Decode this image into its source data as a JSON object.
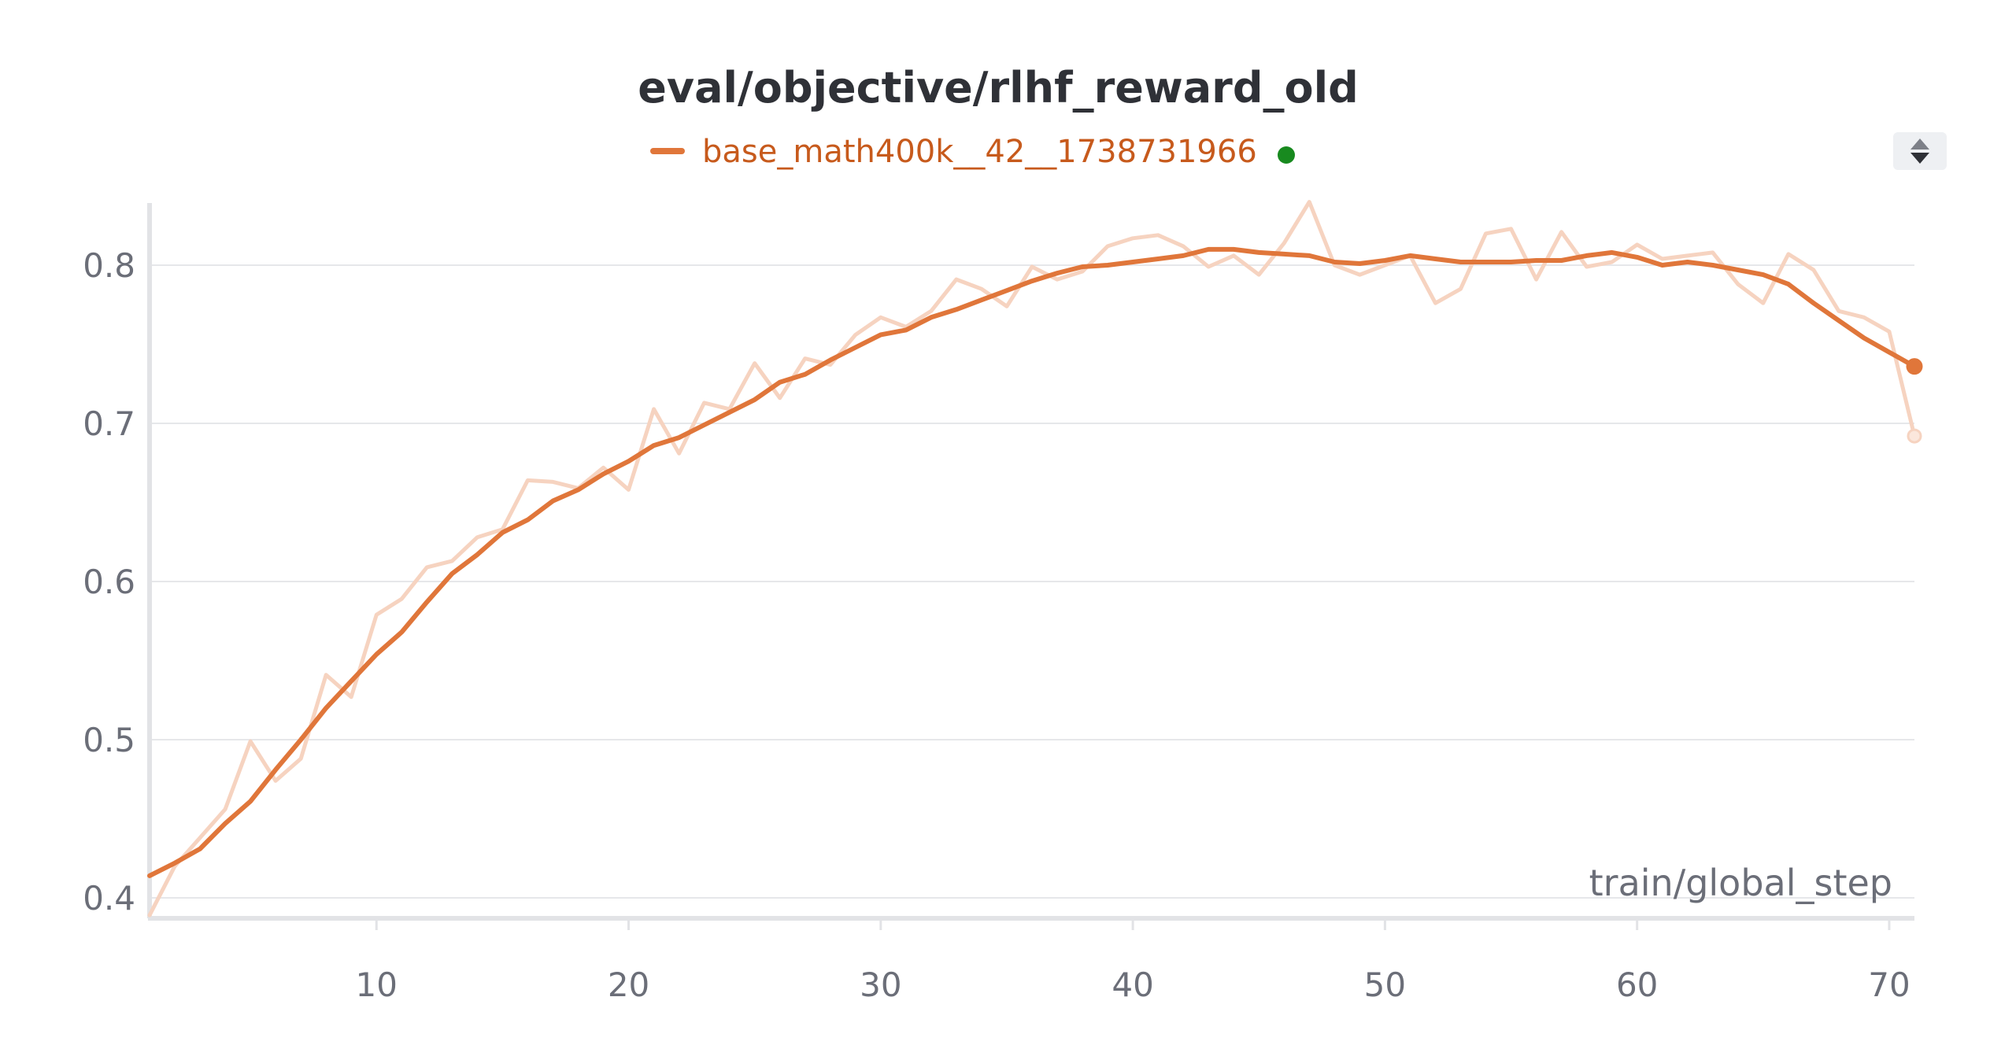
{
  "chart_data": {
    "type": "line",
    "title": "eval/objective/rlhf_reward_old",
    "xlabel": "train/global_step",
    "ylabel": "",
    "xlim": [
      1,
      71
    ],
    "ylim": [
      0.39,
      0.84
    ],
    "x_ticks": [
      10,
      20,
      30,
      40,
      50,
      60,
      70
    ],
    "y_ticks": [
      0.4,
      0.5,
      0.6,
      0.7,
      0.8
    ],
    "grid": "horizontal",
    "legend_position": "top-center",
    "colors": {
      "smoothed": "#e0763a",
      "raw": "#f6d3c0",
      "legend_text": "#c75a1c",
      "status_dot": "#188a1f",
      "grid": "#e6e7ea",
      "axis": "#e2e3e6"
    },
    "series": [
      {
        "name": "base_math400k__42__1738731966",
        "kind": "smoothed",
        "x": [
          1,
          2,
          3,
          4,
          5,
          6,
          7,
          8,
          9,
          10,
          11,
          12,
          13,
          14,
          15,
          16,
          17,
          18,
          19,
          20,
          21,
          22,
          23,
          24,
          25,
          26,
          27,
          28,
          29,
          30,
          31,
          32,
          33,
          34,
          35,
          36,
          37,
          38,
          39,
          40,
          41,
          42,
          43,
          44,
          45,
          46,
          47,
          48,
          49,
          50,
          51,
          52,
          53,
          54,
          55,
          56,
          57,
          58,
          59,
          60,
          61,
          62,
          63,
          64,
          65,
          66,
          67,
          68,
          69,
          70,
          71
        ],
        "y": [
          0.414,
          0.422,
          0.431,
          0.447,
          0.461,
          0.481,
          0.5,
          0.52,
          0.537,
          0.554,
          0.568,
          0.587,
          0.605,
          0.617,
          0.631,
          0.639,
          0.651,
          0.658,
          0.668,
          0.676,
          0.686,
          0.691,
          0.699,
          0.707,
          0.715,
          0.726,
          0.731,
          0.74,
          0.748,
          0.756,
          0.759,
          0.767,
          0.772,
          0.778,
          0.784,
          0.79,
          0.795,
          0.799,
          0.8,
          0.802,
          0.804,
          0.806,
          0.81,
          0.81,
          0.808,
          0.807,
          0.806,
          0.802,
          0.801,
          0.803,
          0.806,
          0.804,
          0.802,
          0.802,
          0.802,
          0.803,
          0.803,
          0.806,
          0.808,
          0.805,
          0.8,
          0.802,
          0.8,
          0.797,
          0.794,
          0.788,
          0.776,
          0.765,
          0.754,
          0.745,
          0.736
        ]
      },
      {
        "name": "base_math400k__42__1738731966 (raw)",
        "kind": "raw",
        "x": [
          1,
          2,
          3,
          4,
          5,
          6,
          7,
          8,
          9,
          10,
          11,
          12,
          13,
          14,
          15,
          16,
          17,
          18,
          19,
          20,
          21,
          22,
          23,
          24,
          25,
          26,
          27,
          28,
          29,
          30,
          31,
          32,
          33,
          34,
          35,
          36,
          37,
          38,
          39,
          40,
          41,
          42,
          43,
          44,
          45,
          46,
          47,
          48,
          49,
          50,
          51,
          52,
          53,
          54,
          55,
          56,
          57,
          58,
          59,
          60,
          61,
          62,
          63,
          64,
          65,
          66,
          67,
          68,
          69,
          70,
          71
        ],
        "y": [
          0.389,
          0.42,
          0.438,
          0.456,
          0.499,
          0.474,
          0.488,
          0.541,
          0.527,
          0.579,
          0.589,
          0.609,
          0.613,
          0.628,
          0.633,
          0.664,
          0.663,
          0.659,
          0.672,
          0.658,
          0.709,
          0.681,
          0.713,
          0.709,
          0.738,
          0.716,
          0.741,
          0.737,
          0.756,
          0.767,
          0.761,
          0.771,
          0.791,
          0.785,
          0.774,
          0.799,
          0.791,
          0.796,
          0.812,
          0.817,
          0.819,
          0.812,
          0.799,
          0.806,
          0.794,
          0.814,
          0.84,
          0.8,
          0.794,
          0.8,
          0.806,
          0.776,
          0.785,
          0.82,
          0.823,
          0.791,
          0.821,
          0.799,
          0.802,
          0.813,
          0.804,
          0.806,
          0.808,
          0.788,
          0.776,
          0.807,
          0.797,
          0.771,
          0.767,
          0.758,
          0.692
        ]
      }
    ]
  }
}
